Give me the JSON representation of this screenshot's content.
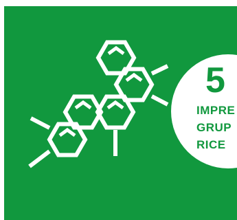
{
  "colors": {
    "background": "#11983e",
    "foreground": "#ffffff",
    "page": "#ffffff"
  },
  "graphic": {
    "icon": "polycyclic-hydrocarbon-molecule-icon",
    "rings": 6
  },
  "badge": {
    "number": "5",
    "lines": [
      "IMPRE",
      "GRUP",
      "RICE"
    ]
  }
}
